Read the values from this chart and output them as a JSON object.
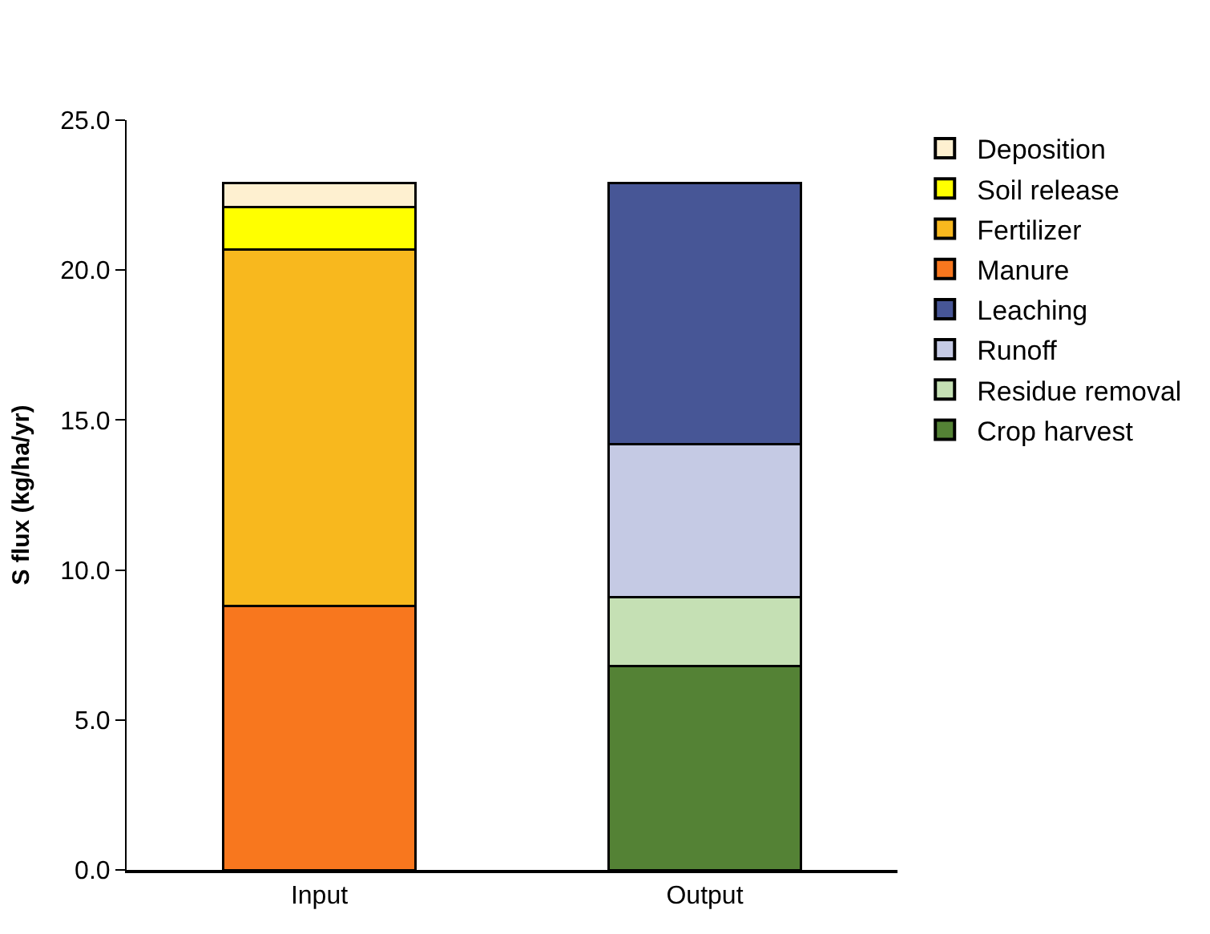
{
  "chart_data": {
    "type": "bar",
    "stacked": true,
    "ylabel": "S flux (kg/ha/yr)",
    "categories": [
      "Input",
      "Output"
    ],
    "series": [
      {
        "name": "Crop harvest",
        "color": "#548235",
        "values": [
          null,
          6.8
        ]
      },
      {
        "name": "Residue removal",
        "color": "#c5e0b4",
        "values": [
          null,
          2.3
        ]
      },
      {
        "name": "Runoff",
        "color": "#c5cae4",
        "values": [
          null,
          5.1
        ]
      },
      {
        "name": "Leaching",
        "color": "#475696",
        "values": [
          null,
          8.7
        ]
      },
      {
        "name": "Manure",
        "color": "#f8771e",
        "values": [
          8.8,
          null
        ]
      },
      {
        "name": "Fertilizer",
        "color": "#f8b81e",
        "values": [
          11.9,
          null
        ]
      },
      {
        "name": "Soil release",
        "color": "#ffff00",
        "values": [
          1.4,
          null
        ]
      },
      {
        "name": "Deposition",
        "color": "#fef0d0",
        "values": [
          0.8,
          null
        ]
      }
    ],
    "ylim": [
      0,
      25
    ],
    "yticks": [
      {
        "value": 0,
        "label": "0.0"
      },
      {
        "value": 5,
        "label": "5.0"
      },
      {
        "value": 10,
        "label": "10.0"
      },
      {
        "value": 15,
        "label": "15.0"
      },
      {
        "value": 20,
        "label": "20.0"
      },
      {
        "value": 25,
        "label": "25.0"
      }
    ],
    "grid": false,
    "legend": "right"
  }
}
